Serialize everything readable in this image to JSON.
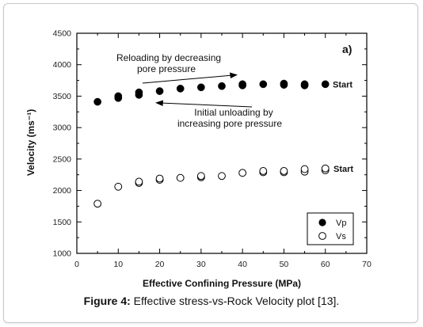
{
  "caption": {
    "prefix": "Figure 4:",
    "text": " Effective stress-vs-Rock Velocity plot [13]."
  },
  "chart_data": {
    "type": "scatter",
    "panel_label": "a)",
    "xlabel": "Effective  Confining  Pressure  (MPa)",
    "ylabel": "Velocity (ms⁻¹)",
    "xlim": [
      0,
      70
    ],
    "ylim": [
      1000,
      4500
    ],
    "xticks": [
      0,
      10,
      20,
      30,
      40,
      50,
      60,
      70
    ],
    "yticks": [
      1000,
      1500,
      2000,
      2500,
      3000,
      3500,
      4000,
      4500
    ],
    "grid": false,
    "legend_position": "bottom-right",
    "series": [
      {
        "name": "Vp",
        "marker": "filled-circle",
        "color": "#000000",
        "points": [
          {
            "x": 5,
            "y": 3410
          },
          {
            "x": 10,
            "y": 3470
          },
          {
            "x": 10,
            "y": 3500
          },
          {
            "x": 15,
            "y": 3520
          },
          {
            "x": 15,
            "y": 3560
          },
          {
            "x": 20,
            "y": 3580
          },
          {
            "x": 25,
            "y": 3620
          },
          {
            "x": 30,
            "y": 3640
          },
          {
            "x": 35,
            "y": 3660
          },
          {
            "x": 40,
            "y": 3670
          },
          {
            "x": 40,
            "y": 3690
          },
          {
            "x": 45,
            "y": 3690
          },
          {
            "x": 50,
            "y": 3680
          },
          {
            "x": 50,
            "y": 3700
          },
          {
            "x": 55,
            "y": 3670
          },
          {
            "x": 55,
            "y": 3690
          },
          {
            "x": 60,
            "y": 3690
          }
        ]
      },
      {
        "name": "Vs",
        "marker": "open-circle",
        "color": "#000000",
        "points": [
          {
            "x": 5,
            "y": 1790
          },
          {
            "x": 10,
            "y": 2060
          },
          {
            "x": 15,
            "y": 2120
          },
          {
            "x": 15,
            "y": 2140
          },
          {
            "x": 20,
            "y": 2170
          },
          {
            "x": 20,
            "y": 2190
          },
          {
            "x": 25,
            "y": 2200
          },
          {
            "x": 30,
            "y": 2210
          },
          {
            "x": 30,
            "y": 2230
          },
          {
            "x": 35,
            "y": 2230
          },
          {
            "x": 40,
            "y": 2280
          },
          {
            "x": 45,
            "y": 2290
          },
          {
            "x": 45,
            "y": 2310
          },
          {
            "x": 50,
            "y": 2290
          },
          {
            "x": 50,
            "y": 2310
          },
          {
            "x": 55,
            "y": 2300
          },
          {
            "x": 55,
            "y": 2340
          },
          {
            "x": 60,
            "y": 2320
          },
          {
            "x": 60,
            "y": 2350
          }
        ]
      }
    ],
    "annotations": [
      {
        "lines": [
          "Reloading by decreasing",
          "pore pressure"
        ],
        "arrow": "right"
      },
      {
        "lines": [
          "Initial unloading by",
          "increasing pore pressure"
        ],
        "arrow": "left"
      },
      {
        "text": "Start",
        "series": "Vp"
      },
      {
        "text": "Start",
        "series": "Vs"
      }
    ]
  }
}
